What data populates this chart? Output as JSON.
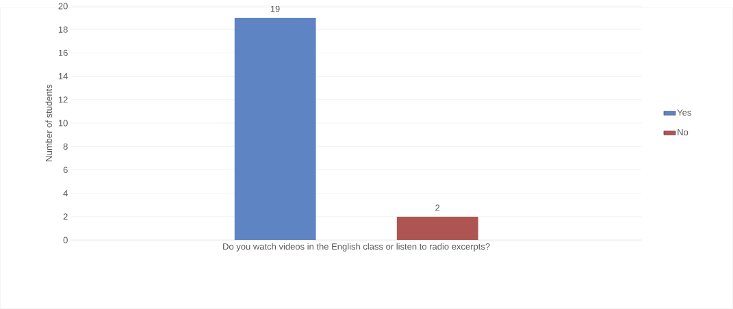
{
  "chart_data": {
    "type": "bar",
    "ylabel": "Number of students",
    "categories": [
      "Do you watch videos in the English class or listen to radio excerpts?"
    ],
    "series": [
      {
        "name": "Yes",
        "color": "#5f84c3",
        "values": [
          19
        ]
      },
      {
        "name": "No",
        "color": "#ae5552",
        "values": [
          2
        ]
      }
    ],
    "ylim": [
      0,
      20
    ],
    "yticks": [
      0,
      2,
      4,
      6,
      8,
      10,
      12,
      14,
      16,
      18,
      20
    ],
    "grid": "y",
    "legend": "right",
    "data_labels": true
  }
}
